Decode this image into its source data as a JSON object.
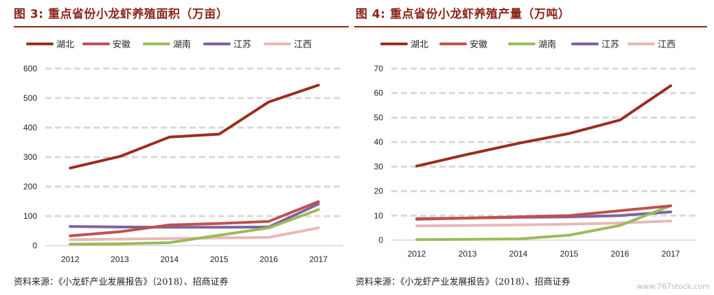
{
  "charts": [
    {
      "figure_label": "图 3:",
      "title": "重点省份小龙虾养殖面积（万亩）",
      "source": "资料来源：《小龙虾产业发展报告》（2018）、招商证券",
      "chart_data": {
        "type": "line",
        "x": [
          "2012",
          "2013",
          "2014",
          "2015",
          "2016",
          "2017"
        ],
        "ylim": [
          0,
          600
        ],
        "yticks": [
          0,
          100,
          200,
          300,
          400,
          500,
          600
        ],
        "grid": true,
        "legend_position": "top",
        "series": [
          {
            "name": "湖北",
            "color": "#9B2D1F",
            "values": [
              263,
              302,
              368,
              378,
              487,
              544
            ]
          },
          {
            "name": "安徽",
            "color": "#C0504D",
            "values": [
              33,
              47,
              70,
              75,
              82,
              149
            ]
          },
          {
            "name": "湖南",
            "color": "#9BBB59",
            "values": [
              5,
              6,
              10,
              35,
              60,
              122
            ]
          },
          {
            "name": "江苏",
            "color": "#7E649E",
            "values": [
              65,
              63,
              62,
              62,
              63,
              141
            ]
          },
          {
            "name": "江西",
            "color": "#E6B9B8",
            "values": [
              20,
              22,
              24,
              26,
              28,
              60
            ]
          }
        ]
      }
    },
    {
      "figure_label": "图 4:",
      "title": "重点省份小龙虾养殖产量（万吨）",
      "source": "资料来源：《小龙虾产业发展报告》（2018）、招商证券",
      "chart_data": {
        "type": "line",
        "x": [
          "2012",
          "2013",
          "2014",
          "2015",
          "2016",
          "2017"
        ],
        "ylim": [
          0,
          70
        ],
        "yticks": [
          0,
          10,
          20,
          30,
          40,
          50,
          60,
          70
        ],
        "grid": true,
        "legend_position": "top",
        "series": [
          {
            "name": "湖北",
            "color": "#9B2D1F",
            "values": [
              30.2,
              35,
              39.5,
              43.5,
              49,
              63
            ]
          },
          {
            "name": "安徽",
            "color": "#C0504D",
            "values": [
              8.5,
              9,
              9.5,
              10,
              12,
              14
            ]
          },
          {
            "name": "湖南",
            "color": "#9BBB59",
            "values": [
              0.2,
              0.3,
              0.5,
              2,
              6,
              14
            ]
          },
          {
            "name": "江苏",
            "color": "#7E649E",
            "values": [
              8.8,
              9,
              9.3,
              9.5,
              10,
              11.5
            ]
          },
          {
            "name": "江西",
            "color": "#E6B9B8",
            "values": [
              5.8,
              6,
              6.2,
              6.5,
              7,
              7.8
            ]
          }
        ]
      }
    }
  ],
  "watermark": "www.767stock.com"
}
